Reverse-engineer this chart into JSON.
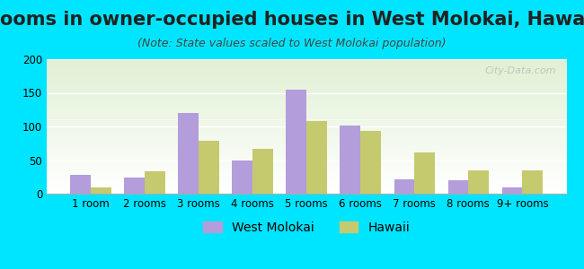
{
  "title": "Rooms in owner-occupied houses in West Molokai, Hawaii",
  "subtitle": "(Note: State values scaled to West Molokai population)",
  "categories": [
    "1 room",
    "2 rooms",
    "3 rooms",
    "4 rooms",
    "5 rooms",
    "6 rooms",
    "7 rooms",
    "8 rooms",
    "9+ rooms"
  ],
  "west_molokai": [
    28,
    24,
    120,
    50,
    155,
    101,
    21,
    20,
    9
  ],
  "hawaii": [
    10,
    33,
    79,
    67,
    108,
    93,
    62,
    35,
    35
  ],
  "west_molokai_color": "#b39ddb",
  "hawaii_color": "#c5ca6e",
  "background_outer": "#00e5ff",
  "background_chart": "#f5f8f0",
  "ylim": [
    0,
    200
  ],
  "yticks": [
    0,
    50,
    100,
    150,
    200
  ],
  "bar_width": 0.38,
  "title_fontsize": 15,
  "subtitle_fontsize": 9,
  "tick_fontsize": 8.5,
  "legend_fontsize": 10
}
